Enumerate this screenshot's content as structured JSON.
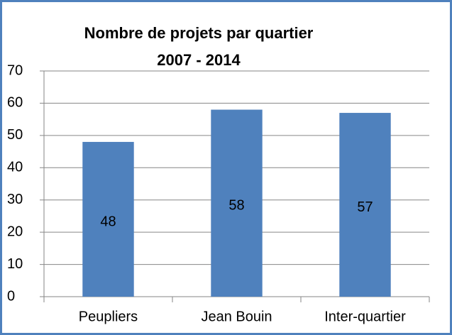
{
  "chart_data": {
    "type": "bar",
    "title": [
      "Nombre de projets par quartier",
      "2007 - 2014"
    ],
    "categories": [
      "Peupliers",
      "Jean Bouin",
      "Inter-quartier"
    ],
    "values": [
      48,
      58,
      57
    ],
    "color": "#4f81bd",
    "ylim": [
      0,
      70
    ],
    "yticks": [
      0,
      10,
      20,
      30,
      40,
      50,
      60,
      70
    ],
    "grid": true,
    "data_labels": true
  }
}
